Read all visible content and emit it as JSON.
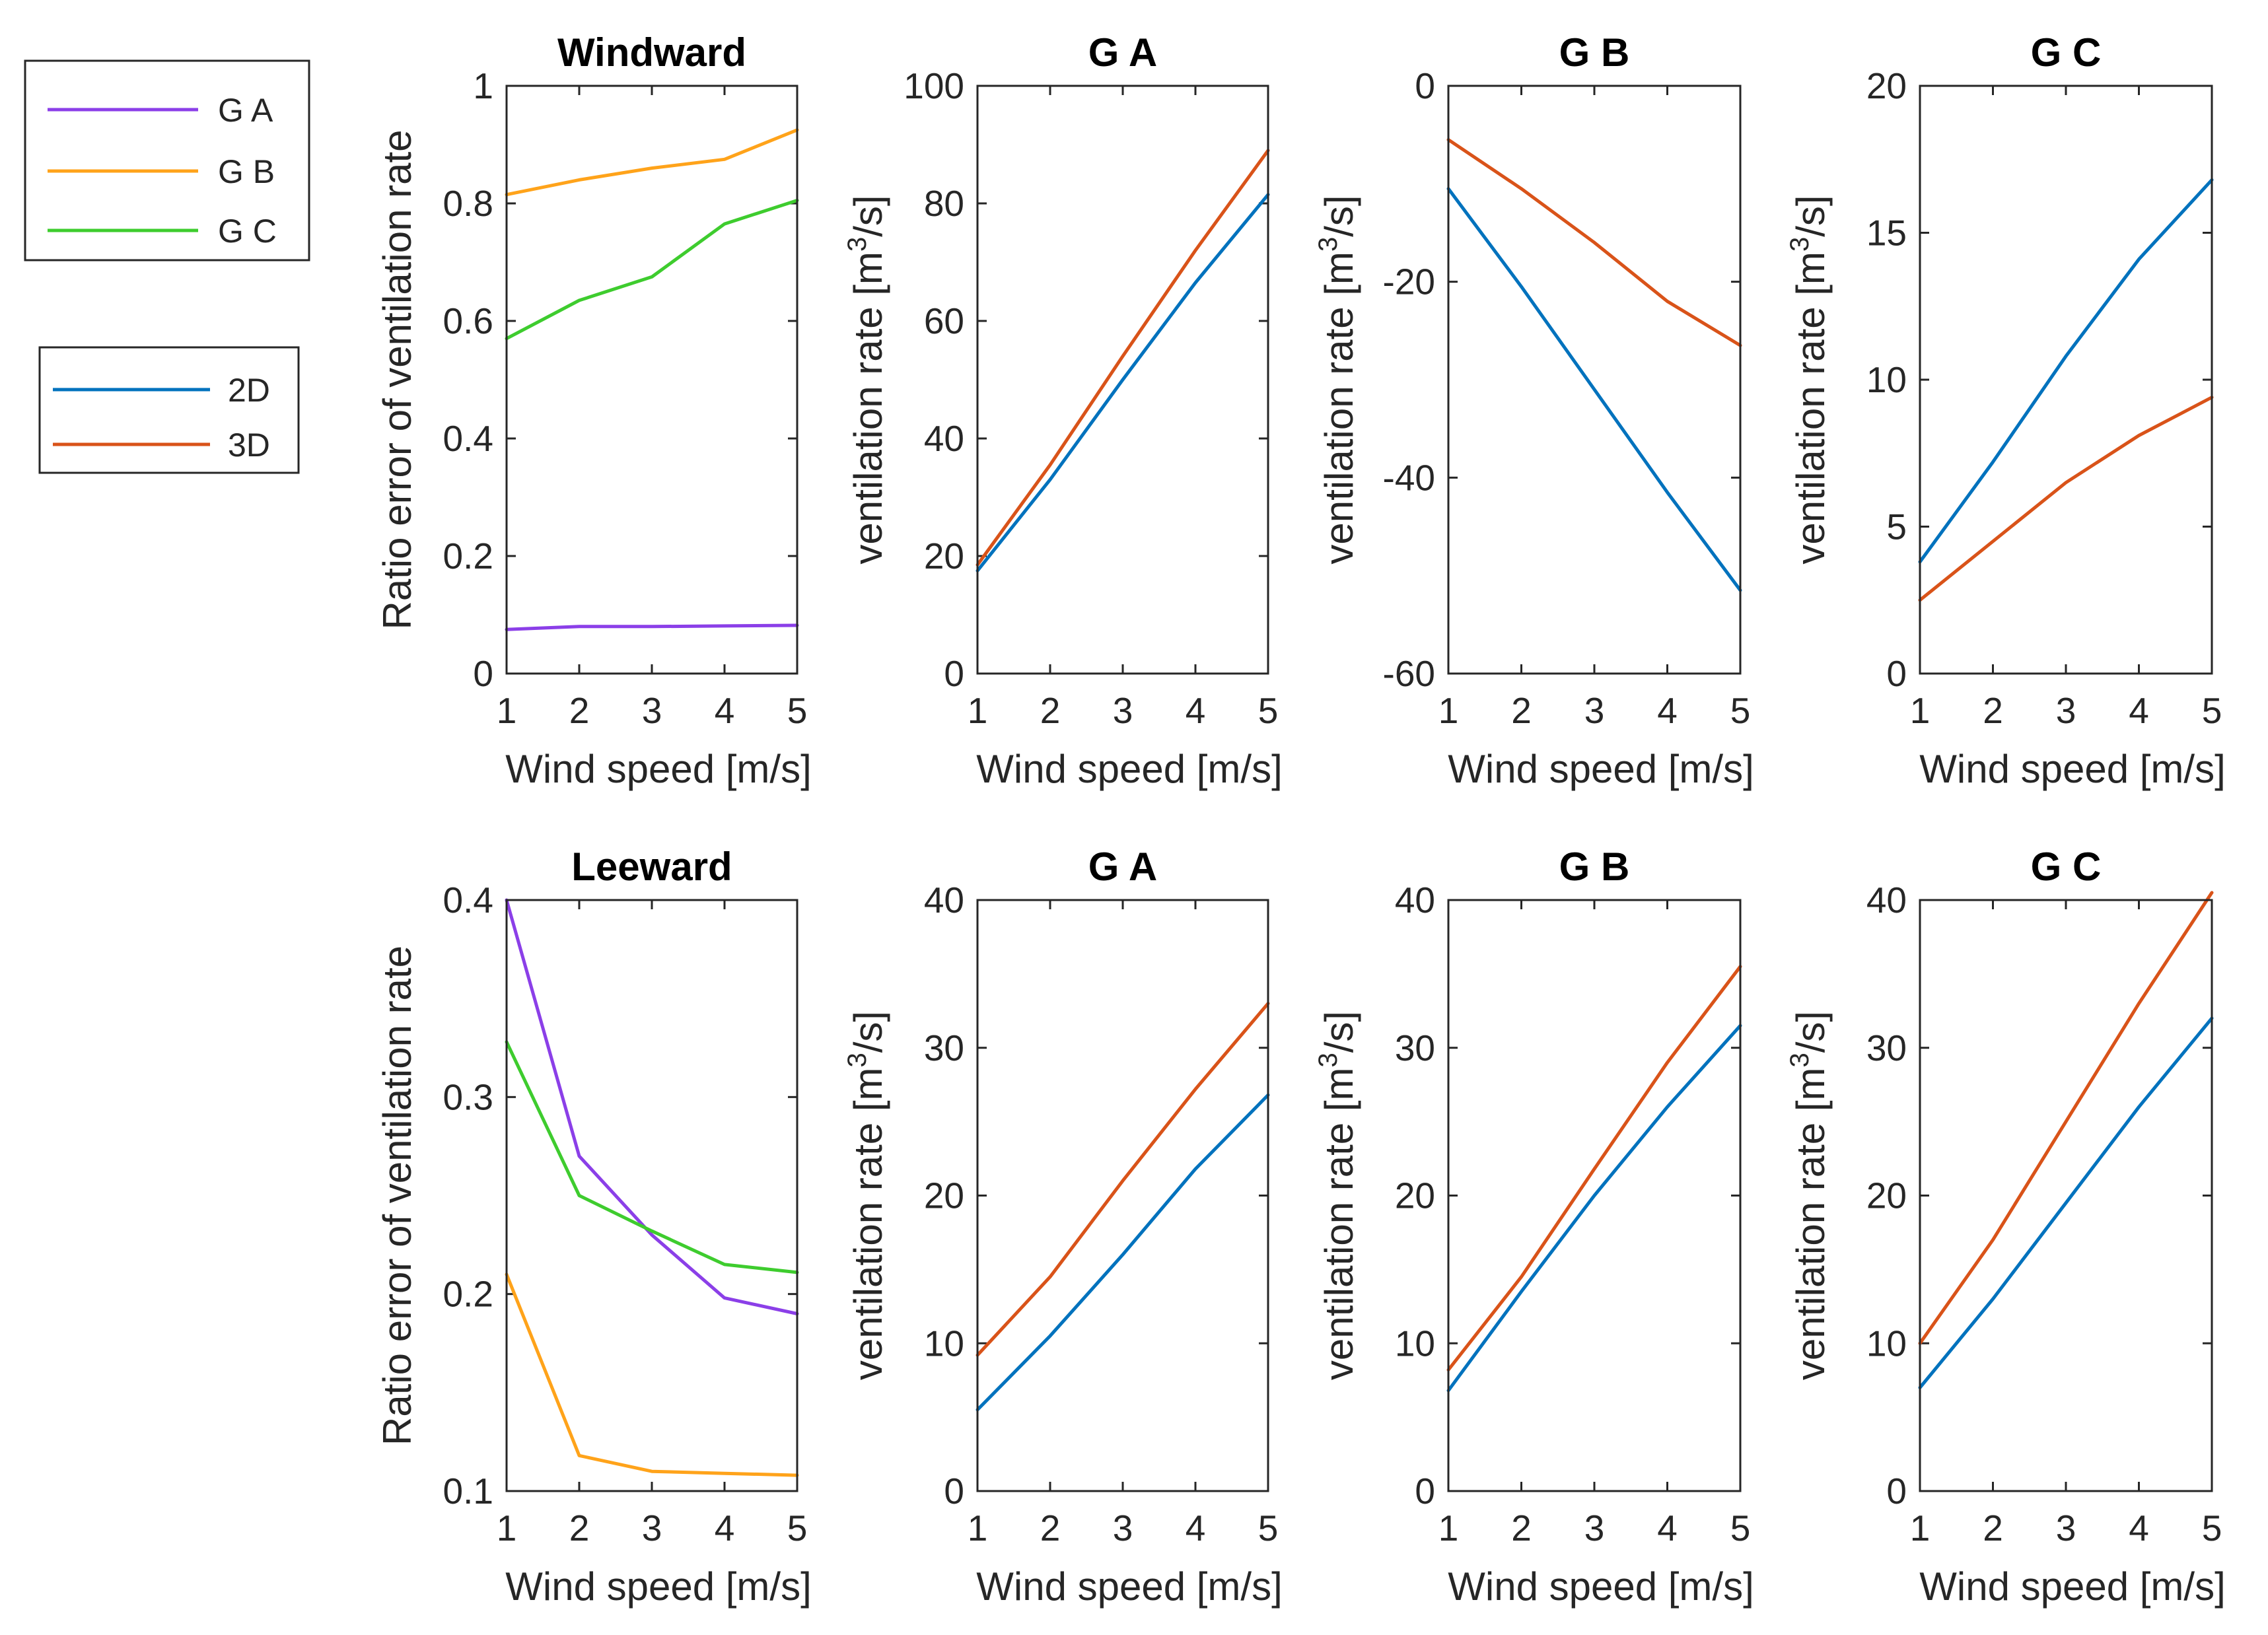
{
  "chart_data": [
    {
      "id": "windward-ratio",
      "type": "line",
      "title": "Windward",
      "xlabel": "Wind speed [m/s]",
      "ylabel": "Ratio error of ventilation rate",
      "ylabel_sup": "",
      "ylabel_tail": "",
      "x": [
        1,
        2,
        3,
        4,
        5
      ],
      "xlim": [
        1,
        5
      ],
      "xticks": [
        1,
        2,
        3,
        4,
        5
      ],
      "ylim": [
        0,
        1
      ],
      "yticks": [
        0,
        0.2,
        0.4,
        0.6,
        0.8,
        1
      ],
      "ytick_labels": [
        "0",
        "0.2",
        "0.4",
        "0.6",
        "0.8",
        "1"
      ],
      "series": [
        {
          "name": "G A",
          "color": "#8B3FE8",
          "values": [
            0.075,
            0.08,
            0.08,
            0.081,
            0.082
          ]
        },
        {
          "name": "G B",
          "color": "#FFA31A",
          "values": [
            0.815,
            0.84,
            0.86,
            0.875,
            0.925
          ]
        },
        {
          "name": "G C",
          "color": "#3ECC2E",
          "values": [
            0.57,
            0.635,
            0.675,
            0.765,
            0.805
          ]
        }
      ]
    },
    {
      "id": "windward-ga",
      "type": "line",
      "title": "G A",
      "xlabel": "Wind speed [m/s]",
      "ylabel": "ventilation rate [m",
      "ylabel_sup": "3",
      "ylabel_tail": "/s]",
      "x": [
        1,
        2,
        3,
        4,
        5
      ],
      "xlim": [
        1,
        5
      ],
      "xticks": [
        1,
        2,
        3,
        4,
        5
      ],
      "ylim": [
        0,
        100
      ],
      "yticks": [
        0,
        20,
        40,
        60,
        80,
        100
      ],
      "ytick_labels": [
        "0",
        "20",
        "40",
        "60",
        "80",
        "100"
      ],
      "series": [
        {
          "name": "2D",
          "color": "#0072BD",
          "values": [
            17.5,
            33,
            50,
            66.5,
            81.5
          ]
        },
        {
          "name": "3D",
          "color": "#D95319",
          "values": [
            18.5,
            35.5,
            54,
            72,
            89
          ]
        }
      ]
    },
    {
      "id": "windward-gb",
      "type": "line",
      "title": "G B",
      "xlabel": "Wind speed [m/s]",
      "ylabel": "ventilation rate [m",
      "ylabel_sup": "3",
      "ylabel_tail": "/s]",
      "x": [
        1,
        2,
        3,
        4,
        5
      ],
      "xlim": [
        1,
        5
      ],
      "xticks": [
        1,
        2,
        3,
        4,
        5
      ],
      "ylim": [
        -60,
        0
      ],
      "yticks": [
        -60,
        -40,
        -20,
        0
      ],
      "ytick_labels": [
        "-60",
        "-40",
        "-20",
        "0"
      ],
      "series": [
        {
          "name": "2D",
          "color": "#0072BD",
          "values": [
            -10.5,
            -20.5,
            -31,
            -41.5,
            -51.5
          ]
        },
        {
          "name": "3D",
          "color": "#D95319",
          "values": [
            -5.5,
            -10.5,
            -16,
            -22,
            -26.5
          ]
        }
      ]
    },
    {
      "id": "windward-gc",
      "type": "line",
      "title": "G C",
      "xlabel": "Wind speed [m/s]",
      "ylabel": "ventilation rate [m",
      "ylabel_sup": "3",
      "ylabel_tail": "/s]",
      "x": [
        1,
        2,
        3,
        4,
        5
      ],
      "xlim": [
        1,
        5
      ],
      "xticks": [
        1,
        2,
        3,
        4,
        5
      ],
      "ylim": [
        0,
        20
      ],
      "yticks": [
        0,
        5,
        10,
        15,
        20
      ],
      "ytick_labels": [
        "0",
        "5",
        "10",
        "15",
        "20"
      ],
      "series": [
        {
          "name": "2D",
          "color": "#0072BD",
          "values": [
            3.8,
            7.2,
            10.8,
            14.1,
            16.8
          ]
        },
        {
          "name": "3D",
          "color": "#D95319",
          "values": [
            2.5,
            4.5,
            6.5,
            8.1,
            9.4
          ]
        }
      ]
    },
    {
      "id": "leeward-ratio",
      "type": "line",
      "title": "Leeward",
      "xlabel": "Wind speed [m/s]",
      "ylabel": "Ratio error of ventilation rate",
      "ylabel_sup": "",
      "ylabel_tail": "",
      "x": [
        1,
        2,
        3,
        4,
        5
      ],
      "xlim": [
        1,
        5
      ],
      "xticks": [
        1,
        2,
        3,
        4,
        5
      ],
      "ylim": [
        0.1,
        0.4
      ],
      "yticks": [
        0.1,
        0.2,
        0.3,
        0.4
      ],
      "ytick_labels": [
        "0.1",
        "0.2",
        "0.3",
        "0.4"
      ],
      "series": [
        {
          "name": "G A",
          "color": "#8B3FE8",
          "values": [
            0.4,
            0.27,
            0.23,
            0.198,
            0.19
          ]
        },
        {
          "name": "G B",
          "color": "#FFA31A",
          "values": [
            0.21,
            0.118,
            0.11,
            0.109,
            0.108
          ]
        },
        {
          "name": "G C",
          "color": "#3ECC2E",
          "values": [
            0.328,
            0.25,
            0.232,
            0.215,
            0.211
          ]
        }
      ]
    },
    {
      "id": "leeward-ga",
      "type": "line",
      "title": "G A",
      "xlabel": "Wind speed [m/s]",
      "ylabel": "ventilation rate [m",
      "ylabel_sup": "3",
      "ylabel_tail": "/s]",
      "x": [
        1,
        2,
        3,
        4,
        5
      ],
      "xlim": [
        1,
        5
      ],
      "xticks": [
        1,
        2,
        3,
        4,
        5
      ],
      "ylim": [
        0,
        40
      ],
      "yticks": [
        0,
        10,
        20,
        30,
        40
      ],
      "ytick_labels": [
        "0",
        "10",
        "20",
        "30",
        "40"
      ],
      "series": [
        {
          "name": "2D",
          "color": "#0072BD",
          "values": [
            5.5,
            10.5,
            16,
            21.8,
            26.8
          ]
        },
        {
          "name": "3D",
          "color": "#D95319",
          "values": [
            9.2,
            14.5,
            21,
            27.2,
            33
          ]
        }
      ]
    },
    {
      "id": "leeward-gb",
      "type": "line",
      "title": "G B",
      "xlabel": "Wind speed [m/s]",
      "ylabel": "ventilation rate [m",
      "ylabel_sup": "3",
      "ylabel_tail": "/s]",
      "x": [
        1,
        2,
        3,
        4,
        5
      ],
      "xlim": [
        1,
        5
      ],
      "xticks": [
        1,
        2,
        3,
        4,
        5
      ],
      "ylim": [
        0,
        40
      ],
      "yticks": [
        0,
        10,
        20,
        30,
        40
      ],
      "ytick_labels": [
        "0",
        "10",
        "20",
        "30",
        "40"
      ],
      "series": [
        {
          "name": "2D",
          "color": "#0072BD",
          "values": [
            6.8,
            13.5,
            20,
            26,
            31.5
          ]
        },
        {
          "name": "3D",
          "color": "#D95319",
          "values": [
            8.2,
            14.5,
            21.8,
            29,
            35.5
          ]
        }
      ]
    },
    {
      "id": "leeward-gc",
      "type": "line",
      "title": "G C",
      "xlabel": "Wind speed [m/s]",
      "ylabel": "ventilation rate [m",
      "ylabel_sup": "3",
      "ylabel_tail": "/s]",
      "x": [
        1,
        2,
        3,
        4,
        5
      ],
      "xlim": [
        1,
        5
      ],
      "xticks": [
        1,
        2,
        3,
        4,
        5
      ],
      "ylim": [
        0,
        40
      ],
      "yticks": [
        0,
        10,
        20,
        30,
        40
      ],
      "ytick_labels": [
        "0",
        "10",
        "20",
        "30",
        "40"
      ],
      "series": [
        {
          "name": "2D",
          "color": "#0072BD",
          "values": [
            7,
            13,
            19.5,
            26,
            32
          ]
        },
        {
          "name": "3D",
          "color": "#D95319",
          "values": [
            10,
            17,
            25,
            33,
            40.5
          ]
        }
      ]
    }
  ],
  "legends": [
    {
      "id": "group-legend",
      "entries": [
        {
          "label": "G A",
          "color": "#8B3FE8"
        },
        {
          "label": "G B",
          "color": "#FFA31A"
        },
        {
          "label": "G C",
          "color": "#3ECC2E"
        }
      ]
    },
    {
      "id": "model-legend",
      "entries": [
        {
          "label": "2D",
          "color": "#0072BD"
        },
        {
          "label": "3D",
          "color": "#D95319"
        }
      ]
    }
  ]
}
